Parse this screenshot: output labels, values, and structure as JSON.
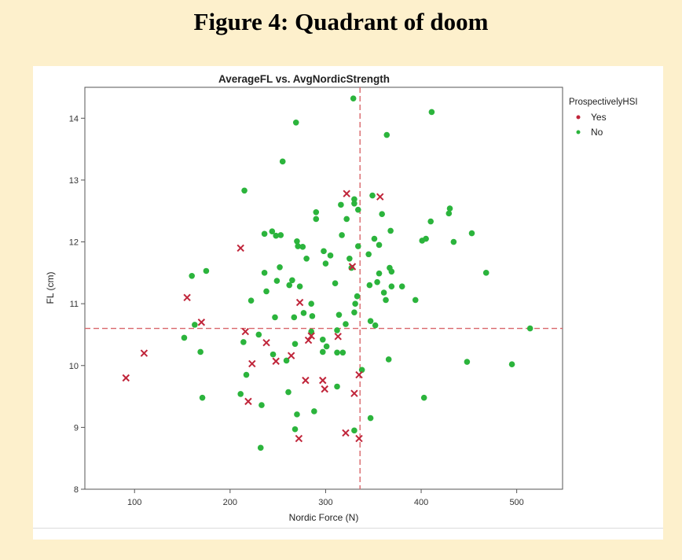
{
  "figure": {
    "title": "Figure 4: Quadrant of doom"
  },
  "chart_data": {
    "type": "scatter",
    "title": "AverageFL vs. AvgNordicStrength",
    "xlabel": "Nordic Force (N)",
    "ylabel": "FL (cm)",
    "xlim": [
      48,
      548
    ],
    "ylim": [
      8,
      14.5
    ],
    "xticks": [
      100,
      200,
      300,
      400,
      500
    ],
    "yticks": [
      8,
      9,
      10,
      11,
      12,
      13,
      14
    ],
    "grid": false,
    "reference_lines": {
      "x": 336,
      "y": 10.6,
      "color": "#d9666a",
      "style": "dashed"
    },
    "legend": {
      "title": "ProspectivelyHSI",
      "position": "right"
    },
    "series": [
      {
        "name": "Yes",
        "color": "#c0253a",
        "marker": "x",
        "points": [
          [
            91,
            9.8
          ],
          [
            110,
            10.2
          ],
          [
            155,
            11.1
          ],
          [
            170,
            10.7
          ],
          [
            211,
            11.9
          ],
          [
            216,
            10.55
          ],
          [
            219,
            9.42
          ],
          [
            223,
            10.03
          ],
          [
            238,
            10.37
          ],
          [
            248,
            10.07
          ],
          [
            264,
            10.16
          ],
          [
            273,
            11.02
          ],
          [
            272,
            8.82
          ],
          [
            279,
            9.76
          ],
          [
            282,
            10.41
          ],
          [
            285,
            10.48
          ],
          [
            297,
            9.76
          ],
          [
            299,
            9.62
          ],
          [
            313,
            10.47
          ],
          [
            321,
            8.91
          ],
          [
            322,
            12.78
          ],
          [
            328,
            11.6
          ],
          [
            330,
            9.55
          ],
          [
            335,
            9.85
          ],
          [
            335,
            8.82
          ],
          [
            357,
            12.73
          ]
        ]
      },
      {
        "name": "No",
        "color": "#2bb43c",
        "marker": "dot",
        "points": [
          [
            152,
            10.45
          ],
          [
            160,
            11.45
          ],
          [
            163,
            10.66
          ],
          [
            169,
            10.22
          ],
          [
            171,
            9.48
          ],
          [
            175,
            11.53
          ],
          [
            211,
            9.54
          ],
          [
            214,
            10.38
          ],
          [
            215,
            12.83
          ],
          [
            217,
            9.85
          ],
          [
            222,
            11.05
          ],
          [
            230,
            10.5
          ],
          [
            233,
            9.36
          ],
          [
            232,
            8.67
          ],
          [
            236,
            11.5
          ],
          [
            236,
            12.13
          ],
          [
            238,
            11.2
          ],
          [
            244,
            12.17
          ],
          [
            245,
            10.18
          ],
          [
            247,
            10.78
          ],
          [
            248,
            12.1
          ],
          [
            249,
            11.37
          ],
          [
            252,
            11.59
          ],
          [
            253,
            12.11
          ],
          [
            255,
            13.3
          ],
          [
            259,
            10.08
          ],
          [
            261,
            9.57
          ],
          [
            262,
            11.3
          ],
          [
            265,
            11.38
          ],
          [
            267,
            10.78
          ],
          [
            268,
            10.35
          ],
          [
            268,
            8.97
          ],
          [
            269,
            13.93
          ],
          [
            270,
            9.21
          ],
          [
            270,
            12.01
          ],
          [
            271,
            11.93
          ],
          [
            273,
            11.28
          ],
          [
            276,
            11.92
          ],
          [
            277,
            10.85
          ],
          [
            280,
            11.73
          ],
          [
            285,
            11.0
          ],
          [
            285,
            10.55
          ],
          [
            286,
            10.8
          ],
          [
            290,
            12.37
          ],
          [
            290,
            12.48
          ],
          [
            288,
            9.26
          ],
          [
            297,
            10.22
          ],
          [
            297,
            10.42
          ],
          [
            298,
            11.85
          ],
          [
            300,
            11.65
          ],
          [
            301,
            10.31
          ],
          [
            305,
            11.78
          ],
          [
            310,
            11.33
          ],
          [
            312,
            10.57
          ],
          [
            312,
            10.21
          ],
          [
            312,
            9.66
          ],
          [
            314,
            10.82
          ],
          [
            316,
            12.6
          ],
          [
            317,
            12.11
          ],
          [
            318,
            10.21
          ],
          [
            321,
            10.67
          ],
          [
            322,
            12.37
          ],
          [
            325,
            11.73
          ],
          [
            327,
            11.58
          ],
          [
            329,
            14.32
          ],
          [
            330,
            12.62
          ],
          [
            330,
            12.69
          ],
          [
            330,
            10.86
          ],
          [
            330,
            8.95
          ],
          [
            331,
            11.0
          ],
          [
            333,
            11.12
          ],
          [
            334,
            12.52
          ],
          [
            334,
            11.93
          ],
          [
            338,
            9.93
          ],
          [
            345,
            11.8
          ],
          [
            346,
            11.3
          ],
          [
            347,
            10.72
          ],
          [
            347,
            9.15
          ],
          [
            349,
            12.75
          ],
          [
            351,
            12.05
          ],
          [
            352,
            10.65
          ],
          [
            354,
            11.35
          ],
          [
            356,
            11.49
          ],
          [
            356,
            11.95
          ],
          [
            359,
            12.45
          ],
          [
            361,
            11.18
          ],
          [
            363,
            11.06
          ],
          [
            364,
            13.73
          ],
          [
            366,
            10.1
          ],
          [
            367,
            11.58
          ],
          [
            368,
            12.18
          ],
          [
            369,
            11.52
          ],
          [
            369,
            11.28
          ],
          [
            380,
            11.28
          ],
          [
            394,
            11.06
          ],
          [
            401,
            12.02
          ],
          [
            403,
            9.48
          ],
          [
            405,
            12.05
          ],
          [
            410,
            12.33
          ],
          [
            411,
            14.1
          ],
          [
            429,
            12.46
          ],
          [
            430,
            12.54
          ],
          [
            434,
            12.0
          ],
          [
            448,
            10.06
          ],
          [
            453,
            12.14
          ],
          [
            468,
            11.5
          ],
          [
            495,
            10.02
          ],
          [
            514,
            10.6
          ]
        ]
      }
    ]
  }
}
